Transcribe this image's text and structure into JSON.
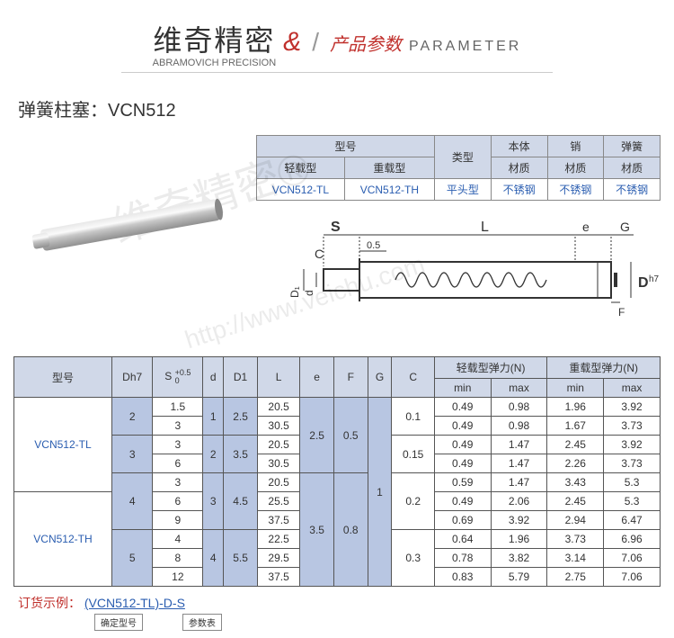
{
  "header": {
    "brand_cn": "维奇精密",
    "brand_en": "ABRAMOVICH PRECISION",
    "amp": "&",
    "param_cn": "产品参数",
    "param_en": "PARAMETER"
  },
  "product": {
    "title_label": "弹簧柱塞：",
    "title_code": "VCN512"
  },
  "type_table": {
    "headers": {
      "model": "型号",
      "light": "轻载型",
      "heavy": "重载型",
      "type": "类型",
      "body": "本体",
      "pin": "销",
      "spring": "弹簧",
      "material": "材质"
    },
    "row": {
      "light_code": "VCN512-TL",
      "heavy_code": "VCN512-TH",
      "type_val": "平头型",
      "body_mat": "不锈钢",
      "pin_mat": "不锈钢",
      "spring_mat": "不锈钢"
    }
  },
  "diagram_labels": {
    "S": "S",
    "L": "L",
    "C": "C",
    "zero5": "0.5",
    "e": "e",
    "G": "G",
    "D1": "D₁",
    "d": "d",
    "D": "D",
    "h7": "h7",
    "F": "F"
  },
  "data_table": {
    "headers": {
      "model": "型号",
      "Dh7": "Dh7",
      "S": "S",
      "S_tol_top": "+0.5",
      "S_tol_bot": "0",
      "d": "d",
      "D1": "D1",
      "L": "L",
      "e": "e",
      "F": "F",
      "G": "G",
      "C": "C",
      "light_force": "轻载型弹力(N)",
      "heavy_force": "重载型弹力(N)",
      "min": "min",
      "max": "max"
    },
    "models": {
      "tl": "VCN512-TL",
      "th": "VCN512-TH"
    },
    "rows": [
      {
        "Dh7": "2",
        "S": "1.5",
        "d": "1",
        "D1": "2.5",
        "L": "20.5",
        "e": "2.5",
        "F": "0.5",
        "G": "",
        "C": "0.1",
        "lmin": "0.49",
        "lmax": "0.98",
        "hmin": "1.96",
        "hmax": "3.92"
      },
      {
        "Dh7": "",
        "S": "3",
        "d": "",
        "D1": "",
        "L": "30.5",
        "e": "",
        "F": "",
        "G": "",
        "C": "",
        "lmin": "0.49",
        "lmax": "0.98",
        "hmin": "1.67",
        "hmax": "3.73"
      },
      {
        "Dh7": "3",
        "S": "3",
        "d": "2",
        "D1": "3.5",
        "L": "20.5",
        "e": "",
        "F": "",
        "G": "",
        "C": "0.15",
        "lmin": "0.49",
        "lmax": "1.47",
        "hmin": "2.45",
        "hmax": "3.92"
      },
      {
        "Dh7": "",
        "S": "6",
        "d": "",
        "D1": "",
        "L": "30.5",
        "e": "",
        "F": "",
        "G": "",
        "C": "",
        "lmin": "0.49",
        "lmax": "1.47",
        "hmin": "2.26",
        "hmax": "3.73"
      },
      {
        "Dh7": "4",
        "S": "3",
        "d": "3",
        "D1": "4.5",
        "L": "20.5",
        "e": "3.5",
        "F": "0.8",
        "G": "1",
        "C": "0.2",
        "lmin": "0.59",
        "lmax": "1.47",
        "hmin": "3.43",
        "hmax": "5.3"
      },
      {
        "Dh7": "",
        "S": "6",
        "d": "",
        "D1": "",
        "L": "25.5",
        "e": "",
        "F": "",
        "G": "",
        "C": "",
        "lmin": "0.49",
        "lmax": "2.06",
        "hmin": "2.45",
        "hmax": "5.3"
      },
      {
        "Dh7": "",
        "S": "9",
        "d": "",
        "D1": "",
        "L": "37.5",
        "e": "",
        "F": "",
        "G": "",
        "C": "",
        "lmin": "0.69",
        "lmax": "3.92",
        "hmin": "2.94",
        "hmax": "6.47"
      },
      {
        "Dh7": "5",
        "S": "4",
        "d": "4",
        "D1": "5.5",
        "L": "22.5",
        "e": "",
        "F": "",
        "G": "",
        "C": "0.3",
        "lmin": "0.64",
        "lmax": "1.96",
        "hmin": "3.73",
        "hmax": "6.96"
      },
      {
        "Dh7": "",
        "S": "8",
        "d": "",
        "D1": "",
        "L": "29.5",
        "e": "",
        "F": "",
        "G": "",
        "C": "",
        "lmin": "0.78",
        "lmax": "3.82",
        "hmin": "3.14",
        "hmax": "7.06"
      },
      {
        "Dh7": "",
        "S": "12",
        "d": "",
        "D1": "",
        "L": "37.5",
        "e": "",
        "F": "",
        "G": "",
        "C": "",
        "lmin": "0.83",
        "lmax": "5.79",
        "hmin": "2.75",
        "hmax": "7.06"
      }
    ]
  },
  "order": {
    "label": "订货示例：",
    "code": "(VCN512-TL)-D-S",
    "box1": "确定型号",
    "box2": "参数表"
  },
  "watermark": {
    "line1": "维奇精密®",
    "line2": "http://www.veichu.com"
  },
  "colors": {
    "header_red": "#c0302c",
    "link_blue": "#2a5db0",
    "th_bg": "#d0d8e8",
    "shade_bg": "#b8c6e2",
    "border": "#555"
  }
}
